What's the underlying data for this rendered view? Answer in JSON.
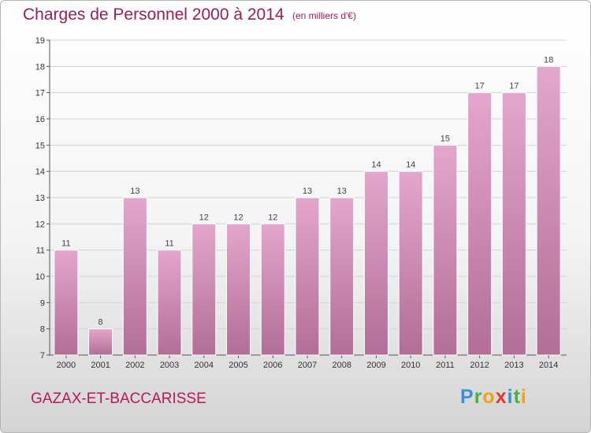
{
  "header": {
    "title": "Charges de Personnel 2000 à 2014",
    "subtitle": "(en milliers d'€)"
  },
  "footer": {
    "town": "GAZAX-ET-BACCARISSE",
    "logo_letters": [
      "P",
      "r",
      "o",
      "x",
      "i",
      "t",
      "i"
    ]
  },
  "colors": {
    "bar_top": "#e4a6cc",
    "bar_bottom": "#b26e96",
    "title": "#9b1c5c"
  },
  "chart_data": {
    "type": "bar",
    "title": "Charges de Personnel 2000 à 2014",
    "subtitle": "(en milliers d'€)",
    "categories": [
      "2000",
      "2001",
      "2002",
      "2003",
      "2004",
      "2005",
      "2006",
      "2007",
      "2008",
      "2009",
      "2010",
      "2011",
      "2012",
      "2013",
      "2014"
    ],
    "values": [
      11,
      8,
      13,
      11,
      12,
      12,
      12,
      13,
      13,
      14,
      14,
      15,
      17,
      17,
      18
    ],
    "ylim": [
      7,
      19
    ],
    "yticks": [
      7,
      8,
      9,
      10,
      11,
      12,
      13,
      14,
      15,
      16,
      17,
      18,
      19
    ],
    "grid": true
  }
}
